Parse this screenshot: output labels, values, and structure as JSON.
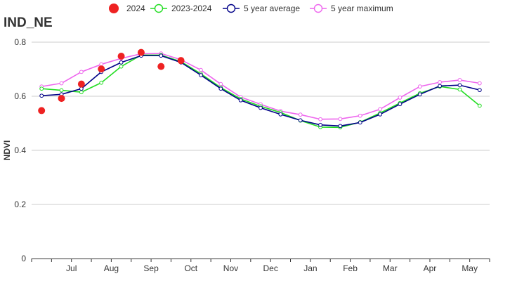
{
  "chart_data": {
    "type": "line",
    "title": "IND_NE",
    "xlabel": "",
    "ylabel": "NDVI",
    "ylim": [
      0,
      0.8
    ],
    "yticks": [
      0,
      0.2,
      0.4,
      0.6,
      0.8
    ],
    "ytick_labels": [
      "0",
      "0.2",
      "0.4",
      "0.6",
      "0.8"
    ],
    "grid": true,
    "legend_position": "top-center",
    "x_count": 23,
    "month_labels": [
      {
        "label": "Jul",
        "x": 1.5
      },
      {
        "label": "Aug",
        "x": 3.5
      },
      {
        "label": "Sep",
        "x": 5.5
      },
      {
        "label": "Oct",
        "x": 7.5
      },
      {
        "label": "Nov",
        "x": 9.5
      },
      {
        "label": "Dec",
        "x": 11.5
      },
      {
        "label": "Jan",
        "x": 13.5
      },
      {
        "label": "Feb",
        "x": 15.5
      },
      {
        "label": "Mar",
        "x": 17.5
      },
      {
        "label": "Apr",
        "x": 19.5
      },
      {
        "label": "May",
        "x": 21.5
      }
    ],
    "series": [
      {
        "name": "5 year maximum",
        "style": "line",
        "color": "#ee66ee",
        "values": [
          0.636,
          0.648,
          0.69,
          0.718,
          0.74,
          0.757,
          0.758,
          0.735,
          0.697,
          0.645,
          0.597,
          0.57,
          0.545,
          0.532,
          0.515,
          0.516,
          0.528,
          0.552,
          0.595,
          0.636,
          0.652,
          0.66,
          0.648
        ]
      },
      {
        "name": "2023-2024",
        "style": "line",
        "color": "#22dd22",
        "values": [
          0.628,
          0.622,
          0.615,
          0.65,
          0.71,
          0.752,
          0.752,
          0.728,
          0.683,
          0.632,
          0.59,
          0.563,
          0.54,
          0.51,
          0.486,
          0.485,
          0.504,
          0.538,
          0.575,
          0.611,
          0.636,
          0.625,
          0.565
        ]
      },
      {
        "name": "5 year average",
        "style": "line",
        "color": "#000088",
        "values": [
          0.602,
          0.607,
          0.628,
          0.69,
          0.725,
          0.75,
          0.75,
          0.725,
          0.678,
          0.628,
          0.585,
          0.557,
          0.533,
          0.511,
          0.494,
          0.49,
          0.503,
          0.533,
          0.571,
          0.607,
          0.638,
          0.641,
          0.623
        ]
      },
      {
        "name": "2024",
        "style": "scatter",
        "color": "#ee2222",
        "values": [
          0.547,
          0.592,
          0.645,
          0.701,
          0.748,
          0.762,
          0.71,
          0.732,
          null,
          null,
          null,
          null,
          null,
          null,
          null,
          null,
          null,
          null,
          null,
          null,
          null,
          null,
          null
        ]
      }
    ],
    "legend": [
      {
        "name": "2024",
        "marker": "dot",
        "color": "#ee2222"
      },
      {
        "name": "2023-2024",
        "marker": "ring",
        "color": "#22dd22"
      },
      {
        "name": "5 year average",
        "marker": "ring",
        "color": "#000088"
      },
      {
        "name": "5 year maximum",
        "marker": "ring",
        "color": "#ee66ee"
      }
    ]
  }
}
